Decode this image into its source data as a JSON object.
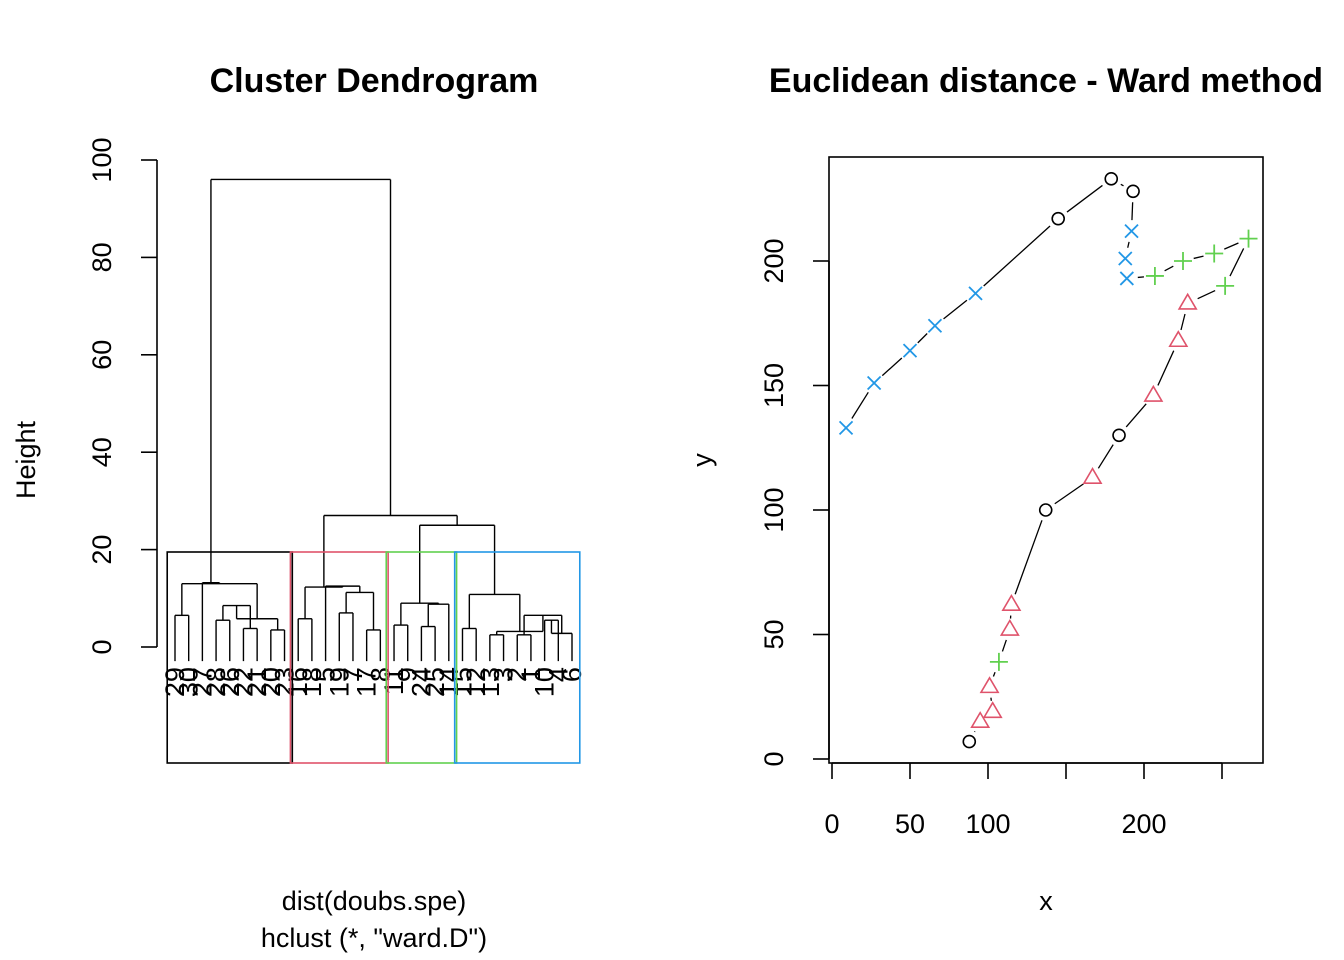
{
  "chart_data": [
    {
      "type": "dendrogram",
      "title": "Cluster Dendrogram",
      "ylabel": "Height",
      "xlabel": "dist(doubs.spe)",
      "sublabel": "hclust (*, \"ward.D\")",
      "ylim": [
        0,
        100
      ],
      "yticks": [
        0,
        20,
        40,
        60,
        80,
        100
      ],
      "leaf_order": [
        "29",
        "30",
        "27",
        "28",
        "26",
        "22",
        "21",
        "20",
        "23",
        "16",
        "18",
        "5",
        "19",
        "7",
        "17",
        "8",
        "11",
        "9",
        "24",
        "25",
        "14",
        "15",
        "12",
        "13",
        "3",
        "2",
        "1",
        "10",
        "4",
        "6"
      ],
      "merges": [
        [
          "29",
          "30",
          6.5
        ],
        [
          "28",
          "26",
          5.5
        ],
        [
          "22",
          "21",
          3.8
        ],
        [
          "20",
          "23",
          3.5
        ],
        [
          "c2",
          "c3",
          8.5
        ],
        [
          "c4",
          "c5",
          5.8
        ],
        [
          "c1",
          "c6",
          13.0
        ],
        [
          "27",
          "c7",
          13.2
        ],
        [
          "16",
          "18",
          5.8
        ],
        [
          "19",
          "7",
          7.0
        ],
        [
          "17",
          "8",
          3.5
        ],
        [
          "c10",
          "c11",
          11.2
        ],
        [
          "5",
          "c12",
          12.5
        ],
        [
          "c9",
          "c13",
          12.3
        ],
        [
          "11",
          "9",
          4.5
        ],
        [
          "24",
          "25",
          4.2
        ],
        [
          "14",
          "c16",
          8.8
        ],
        [
          "c15",
          "c17",
          9.0
        ],
        [
          "15",
          "12",
          3.8
        ],
        [
          "13",
          "3",
          2.5
        ],
        [
          "2",
          "1",
          2.5
        ],
        [
          "10",
          "4",
          5.5
        ],
        [
          "c22",
          "6",
          2.8
        ],
        [
          "c21",
          "c23",
          6.5
        ],
        [
          "c20",
          "c24",
          3.2
        ],
        [
          "c19",
          "c25",
          10.8
        ],
        [
          "c18",
          "c26",
          25.0
        ],
        [
          "c14",
          "c27",
          27.0
        ],
        [
          "c8",
          "c28",
          96.0
        ]
      ],
      "clusters": [
        {
          "color": "#000000",
          "from": "29",
          "to": "23"
        },
        {
          "color": "#DF536B",
          "from": "16",
          "to": "8"
        },
        {
          "color": "#61D04F",
          "from": "11",
          "to": "14"
        },
        {
          "color": "#2297E6",
          "from": "15",
          "to": "6"
        }
      ]
    },
    {
      "type": "scatter",
      "title": "Euclidean distance - Ward method",
      "xlabel": "x",
      "ylabel": "y",
      "xlim": [
        0,
        280
      ],
      "ylim": [
        0,
        240
      ],
      "xticks": [
        0,
        50,
        100,
        150,
        200,
        250
      ],
      "xtick_labels": [
        "0",
        "50",
        "100",
        "",
        "200",
        ""
      ],
      "yticks": [
        0,
        50,
        100,
        150,
        200
      ],
      "series": [
        {
          "group": 1,
          "color": "#000000",
          "symbol": "circle"
        },
        {
          "group": 2,
          "color": "#DF536B",
          "symbol": "triangle"
        },
        {
          "group": 3,
          "color": "#61D04F",
          "symbol": "plus"
        },
        {
          "group": 4,
          "color": "#2297E6",
          "symbol": "cross"
        }
      ],
      "points": [
        {
          "x": 88,
          "y": 7,
          "g": 1
        },
        {
          "x": 95,
          "y": 15,
          "g": 2
        },
        {
          "x": 103,
          "y": 19,
          "g": 2
        },
        {
          "x": 101,
          "y": 29,
          "g": 2
        },
        {
          "x": 107,
          "y": 39,
          "g": 3
        },
        {
          "x": 114,
          "y": 52,
          "g": 2
        },
        {
          "x": 115,
          "y": 62,
          "g": 2
        },
        {
          "x": 137,
          "y": 100,
          "g": 1
        },
        {
          "x": 167,
          "y": 113,
          "g": 2
        },
        {
          "x": 184,
          "y": 130,
          "g": 1
        },
        {
          "x": 206,
          "y": 146,
          "g": 2
        },
        {
          "x": 222,
          "y": 168,
          "g": 2
        },
        {
          "x": 228,
          "y": 183,
          "g": 2
        },
        {
          "x": 252,
          "y": 190,
          "g": 3
        },
        {
          "x": 267,
          "y": 209,
          "g": 3
        },
        {
          "x": 245,
          "y": 203,
          "g": 3
        },
        {
          "x": 225,
          "y": 200,
          "g": 3
        },
        {
          "x": 207,
          "y": 194,
          "g": 3
        },
        {
          "x": 189,
          "y": 193,
          "g": 4
        },
        {
          "x": 188,
          "y": 201,
          "g": 4
        },
        {
          "x": 192,
          "y": 212,
          "g": 4
        },
        {
          "x": 193,
          "y": 228,
          "g": 1
        },
        {
          "x": 179,
          "y": 233,
          "g": 1
        },
        {
          "x": 145,
          "y": 217,
          "g": 1
        },
        {
          "x": 92,
          "y": 187,
          "g": 4
        },
        {
          "x": 66,
          "y": 174,
          "g": 4
        },
        {
          "x": 50,
          "y": 164,
          "g": 4
        },
        {
          "x": 27,
          "y": 151,
          "g": 4
        },
        {
          "x": 9,
          "y": 133,
          "g": 4
        }
      ]
    }
  ]
}
